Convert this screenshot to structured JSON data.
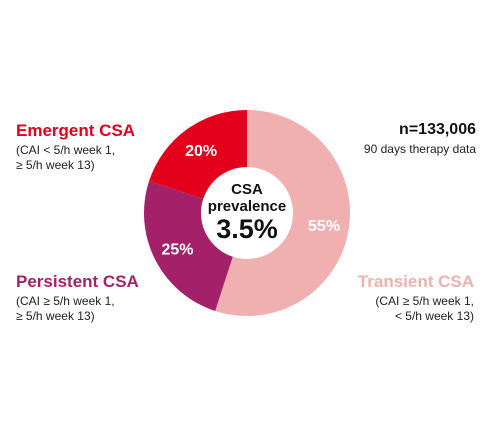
{
  "chart_data": {
    "type": "pie",
    "subtype": "donut",
    "categories": [
      "Emergent CSA",
      "Transient CSA",
      "Persistent CSA"
    ],
    "values": [
      20,
      55,
      25
    ],
    "value_labels": [
      "20%",
      "55%",
      "25%"
    ],
    "colors": [
      "#e3001b",
      "#f0b0b0",
      "#a4216a"
    ],
    "descriptions": [
      [
        "(CAI < 5/h week 1,",
        "≥ 5/h week 13)"
      ],
      [
        "(CAI ≥ 5/h week 1,",
        "< 5/h week 13)"
      ],
      [
        "(CAI ≥ 5/h week 1,",
        "≥ 5/h week 13)"
      ]
    ],
    "center": {
      "line1": "CSA",
      "line2": "prevalence",
      "value": "3.5%"
    },
    "sample": {
      "n": "n=133,006",
      "note": "90 days therapy data"
    },
    "legend": "none"
  }
}
